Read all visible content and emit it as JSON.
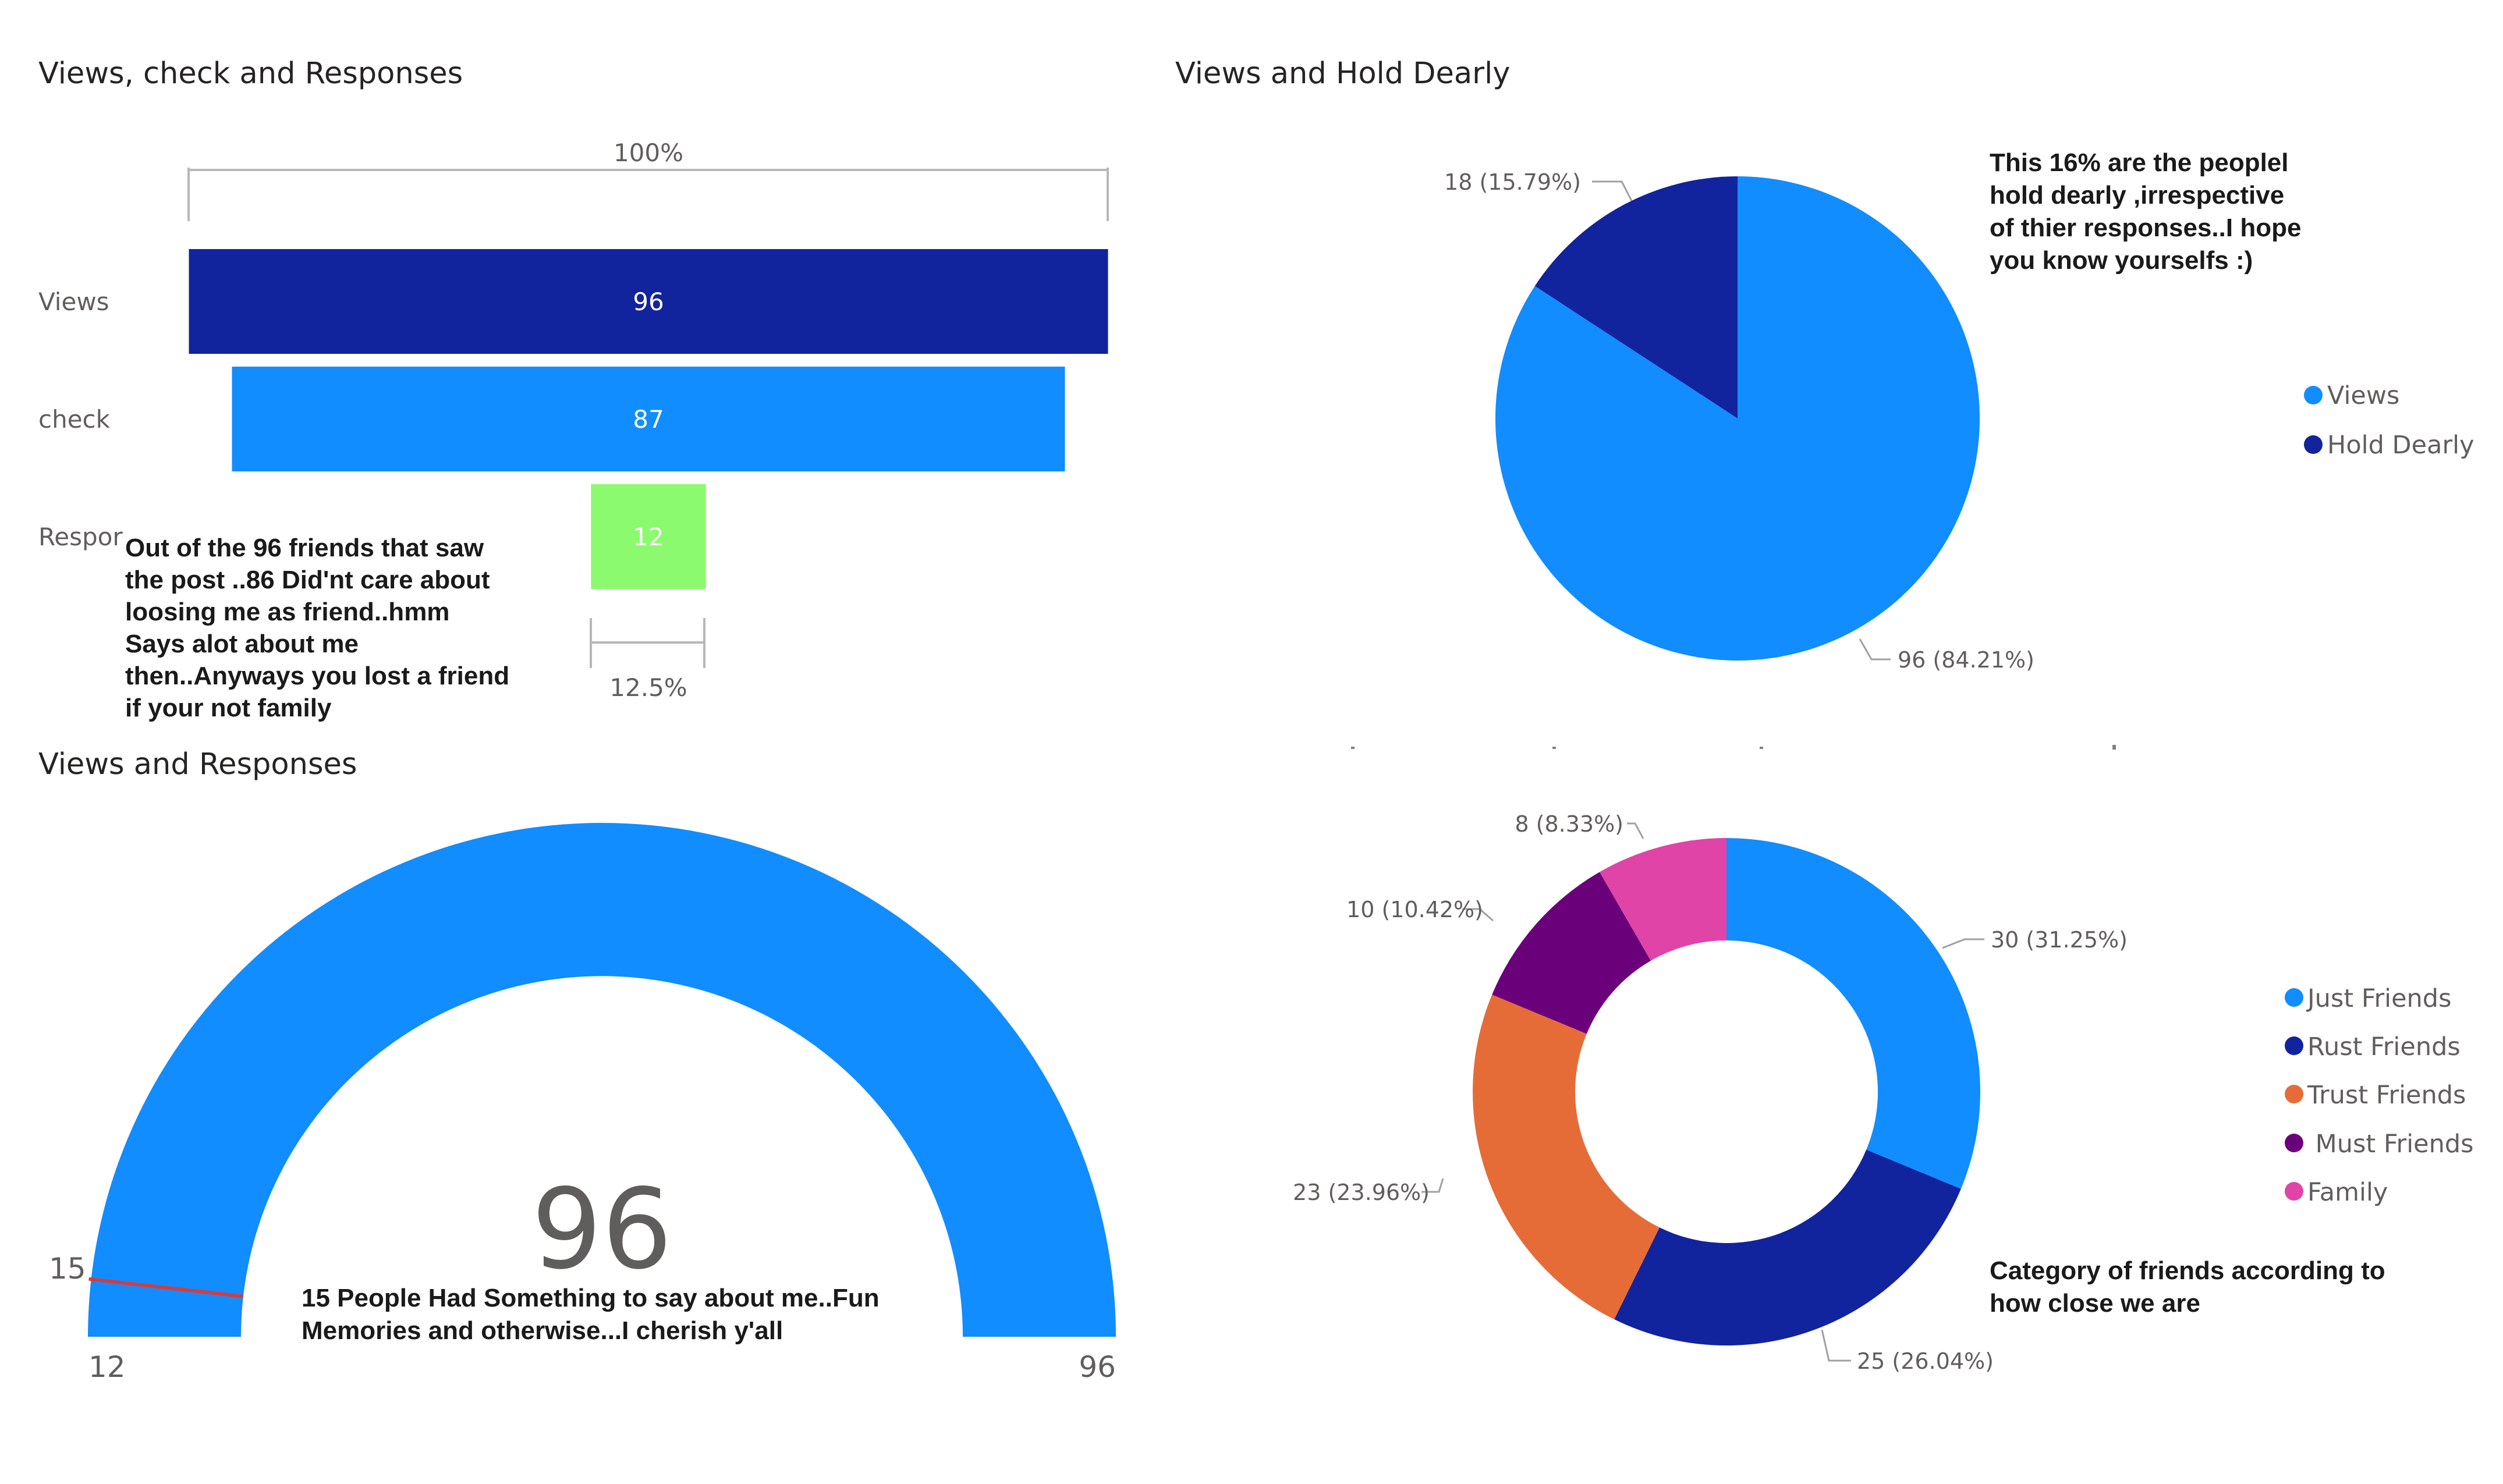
{
  "chart_data": [
    {
      "type": "funnel",
      "title": "Views, check and Responses",
      "categories": [
        "Views",
        "check",
        "Respor"
      ],
      "values": [
        96,
        87,
        12
      ],
      "colors": [
        "#12239e",
        "#118dff",
        "#8cfa6e"
      ],
      "top_label": "100%",
      "bottom_label": "12.5%",
      "note": [
        "Out of the 96 friends that saw",
        "the post ..86 Did'nt care about",
        "loosing me as friend..hmm",
        "Says alot about me",
        "then..Anyways you lost a friend",
        "if your not family"
      ]
    },
    {
      "type": "pie",
      "title": "Views and Hold Dearly",
      "labels": [
        "Views",
        "Hold Dearly"
      ],
      "values": [
        96,
        18
      ],
      "percents": [
        "84.21%",
        "15.79%"
      ],
      "data_labels": [
        "96 (84.21%)",
        "18 (15.79%)"
      ],
      "colors": [
        "#118dff",
        "#12239e"
      ],
      "legend_position": "right",
      "note": [
        "This 16% are the peoplel",
        "hold dearly ,irrespective",
        "of thier responses..I hope",
        "you know yourselfs :)"
      ]
    },
    {
      "type": "gauge",
      "title": "Views and Responses",
      "value": 96,
      "value_label": "96",
      "min": 12,
      "min_label": "12",
      "max": 96,
      "max_label": "96",
      "target": 15,
      "target_label": "15",
      "colors": {
        "fill": "#118dff",
        "target": "#d83b3b"
      },
      "note": [
        "15 People Had Something to say about me..Fun",
        "Memories and otherwise...I cherish y'all"
      ]
    },
    {
      "type": "donut",
      "title": "",
      "labels": [
        "Just Friends",
        "Rust Friends",
        "Trust Friends",
        "Must Friends",
        "Family"
      ],
      "legend_labels": [
        "Just Friends",
        "Rust Friends",
        "Trust Friends",
        " Must Friends",
        "Family"
      ],
      "values": [
        30,
        25,
        23,
        10,
        8
      ],
      "percents": [
        "31.25%",
        "26.04%",
        "23.96%",
        "10.42%",
        "8.33%"
      ],
      "data_labels": [
        "30 (31.25%)",
        "25 (26.04%)",
        "23 (23.96%)",
        "10 (10.42%)",
        "8 (8.33%)"
      ],
      "colors": [
        "#118dff",
        "#12239e",
        "#e66c37",
        "#6b007b",
        "#e044a7"
      ],
      "legend_position": "right",
      "note": [
        "Category of friends according to",
        "how close we are"
      ]
    }
  ]
}
